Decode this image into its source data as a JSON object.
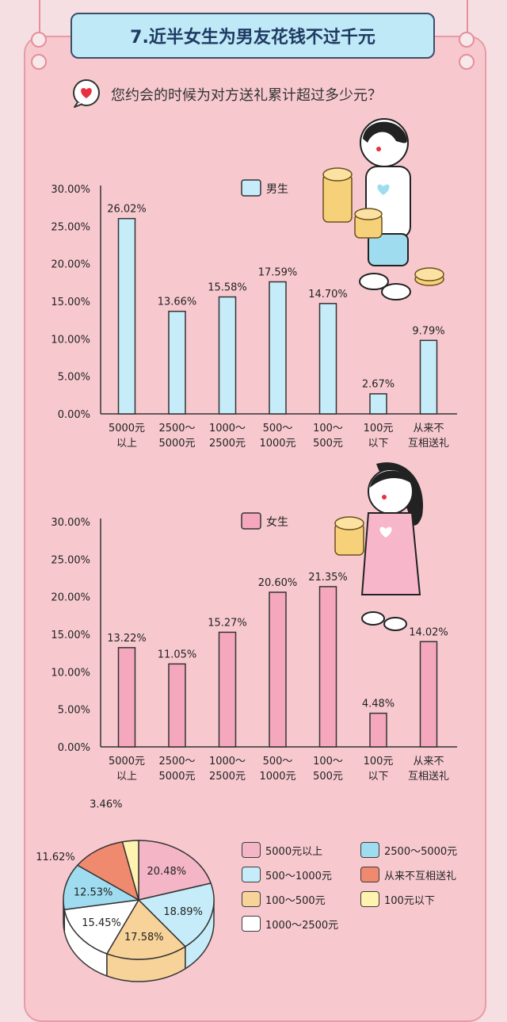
{
  "title": "7.近半女生为男友花钱不过千元",
  "question": "您约会的时候为对方送礼累计超过多少元？",
  "icons": {
    "question": "heart-speech-bubble-icon"
  },
  "colors": {
    "male_bar": "#c5ecf8",
    "female_bar": "#f5a8bd",
    "axis": "#333333",
    "background": "#f7c9cf"
  },
  "chart_data": [
    {
      "type": "bar",
      "title": "",
      "legend": "男生",
      "categories": [
        [
          "5000元",
          "以上"
        ],
        [
          "2500～",
          "5000元"
        ],
        [
          "1000～",
          "2500元"
        ],
        [
          "500～",
          "1000元"
        ],
        [
          "100～",
          "500元"
        ],
        [
          "100元",
          "以下"
        ],
        [
          "从来不",
          "互相送礼"
        ]
      ],
      "values": [
        26.02,
        13.66,
        15.58,
        17.59,
        14.7,
        2.67,
        9.79
      ],
      "value_labels": [
        "26.02%",
        "13.66%",
        "15.58%",
        "17.59%",
        "14.70%",
        "2.67%",
        "9.79%"
      ],
      "yticks": [
        "0.00%",
        "5.00%",
        "10.00%",
        "15.00%",
        "20.00%",
        "25.00%",
        "30.00%"
      ],
      "ylim": [
        0,
        30
      ]
    },
    {
      "type": "bar",
      "title": "",
      "legend": "女生",
      "categories": [
        [
          "5000元",
          "以上"
        ],
        [
          "2500～",
          "5000元"
        ],
        [
          "1000～",
          "2500元"
        ],
        [
          "500～",
          "1000元"
        ],
        [
          "100～",
          "500元"
        ],
        [
          "100元",
          "以下"
        ],
        [
          "从来不",
          "互相送礼"
        ]
      ],
      "values": [
        13.22,
        11.05,
        15.27,
        20.6,
        21.35,
        4.48,
        14.02
      ],
      "value_labels": [
        "13.22%",
        "11.05%",
        "15.27%",
        "20.60%",
        "21.35%",
        "4.48%",
        "14.02%"
      ],
      "yticks": [
        "0.00%",
        "5.00%",
        "10.00%",
        "15.00%",
        "20.00%",
        "25.00%",
        "30.00%"
      ],
      "ylim": [
        0,
        30
      ]
    },
    {
      "type": "pie",
      "slices": [
        {
          "label": "5000元以上",
          "value": 20.48,
          "value_label": "20.48%",
          "color": "#f4b6c6"
        },
        {
          "label": "500～1000元",
          "value": 18.89,
          "value_label": "18.89%",
          "color": "#c5ecf8"
        },
        {
          "label": "100～500元",
          "value": 17.58,
          "value_label": "17.58%",
          "color": "#f7d39a"
        },
        {
          "label": "1000～2500元",
          "value": 15.45,
          "value_label": "15.45%",
          "color": "#ffffff"
        },
        {
          "label": "2500～5000元",
          "value": 12.53,
          "value_label": "12.53%",
          "color": "#9fdcf0"
        },
        {
          "label": "从来不互相送礼",
          "value": 11.62,
          "value_label": "11.62%",
          "color": "#ef8a6f"
        },
        {
          "label": "100元以下",
          "value": 3.46,
          "value_label": "3.46%",
          "color": "#fff3b0"
        }
      ],
      "legend_order": [
        "5000元以上",
        "2500～5000元",
        "500～1000元",
        "从来不互相送礼",
        "100～500元",
        "100元以下",
        "1000～2500元"
      ]
    }
  ]
}
